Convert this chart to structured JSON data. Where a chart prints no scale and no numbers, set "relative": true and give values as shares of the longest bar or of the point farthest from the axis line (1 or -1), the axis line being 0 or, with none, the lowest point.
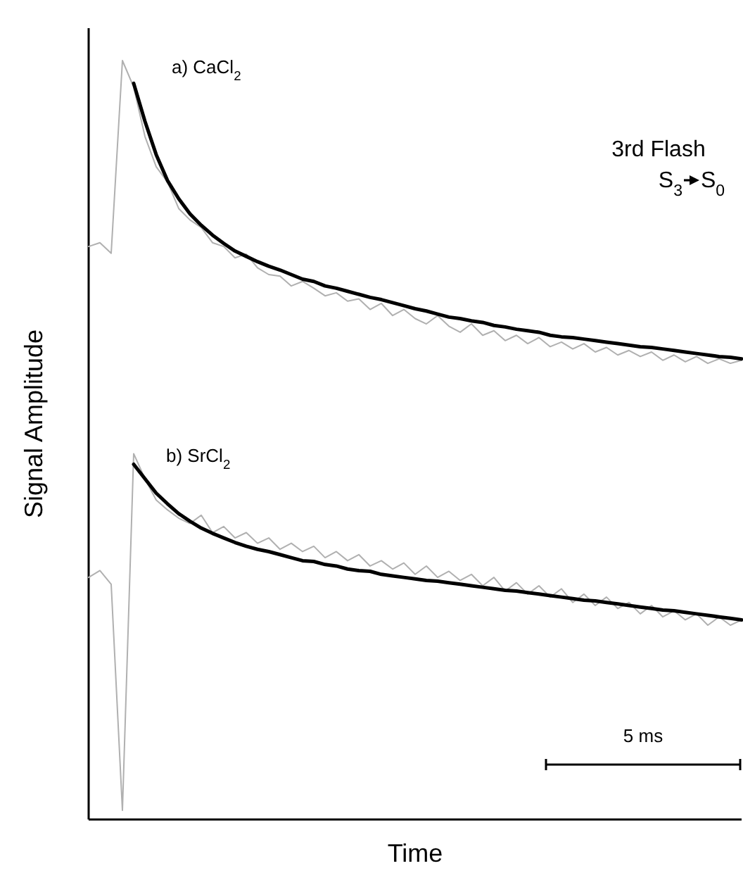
{
  "chart_data": {
    "type": "line",
    "relative": true,
    "xlabel": "Time",
    "ylabel": "Signal Amplitude",
    "categories": [
      null,
      null,
      null,
      null,
      null,
      null,
      null,
      null,
      null,
      null,
      null,
      null,
      null,
      null,
      null,
      null,
      null,
      null,
      null,
      null,
      null,
      null,
      null,
      null,
      null,
      null,
      null,
      null,
      null,
      null,
      null,
      null,
      null,
      null,
      null,
      null,
      null,
      null,
      null,
      null,
      null,
      null,
      null,
      null,
      null,
      null,
      null,
      null,
      null,
      null,
      null,
      null,
      null,
      null,
      null,
      null,
      null,
      null,
      null
    ],
    "series": [
      {
        "color": "#b0b0b0",
        "values": [
          0.755,
          0.76,
          0.746,
          1.0,
          0.965,
          0.9,
          0.86,
          0.84,
          0.805,
          0.79,
          0.78,
          0.76,
          0.755,
          0.74,
          0.745,
          0.727,
          0.718,
          0.716,
          0.703,
          0.709,
          0.7,
          0.69,
          0.694,
          0.683,
          0.686,
          0.672,
          0.68,
          0.664,
          0.672,
          0.66,
          0.653,
          0.664,
          0.65,
          0.642,
          0.653,
          0.638,
          0.644,
          0.631,
          0.638,
          0.627,
          0.635,
          0.623,
          0.629,
          0.62,
          0.627,
          0.616,
          0.622,
          0.612,
          0.618,
          0.61,
          0.616,
          0.605,
          0.612,
          0.603,
          0.61,
          0.601,
          0.607,
          0.601,
          0.605
        ]
      },
      {
        "color": "#000000",
        "values": [
          null,
          null,
          null,
          null,
          0.97,
          0.92,
          0.876,
          0.842,
          0.818,
          0.798,
          0.783,
          0.77,
          0.759,
          0.749,
          0.742,
          0.735,
          0.729,
          0.724,
          0.718,
          0.712,
          0.709,
          0.703,
          0.7,
          0.696,
          0.692,
          0.688,
          0.685,
          0.681,
          0.677,
          0.673,
          0.67,
          0.666,
          0.662,
          0.66,
          0.657,
          0.655,
          0.651,
          0.649,
          0.646,
          0.644,
          0.642,
          0.638,
          0.636,
          0.635,
          0.633,
          0.631,
          0.629,
          0.627,
          0.625,
          0.623,
          0.622,
          0.62,
          0.618,
          0.616,
          0.614,
          0.612,
          0.61,
          0.609,
          0.607
        ]
      },
      {
        "color": "#b0b0b0",
        "values": [
          0.319,
          0.328,
          0.31,
          0.012,
          0.482,
          0.449,
          0.421,
          0.408,
          0.397,
          0.39,
          0.401,
          0.378,
          0.386,
          0.371,
          0.378,
          0.364,
          0.371,
          0.356,
          0.364,
          0.353,
          0.36,
          0.345,
          0.353,
          0.341,
          0.349,
          0.334,
          0.341,
          0.33,
          0.338,
          0.323,
          0.334,
          0.319,
          0.327,
          0.315,
          0.323,
          0.308,
          0.319,
          0.301,
          0.312,
          0.297,
          0.308,
          0.293,
          0.304,
          0.286,
          0.297,
          0.282,
          0.293,
          0.278,
          0.286,
          0.271,
          0.282,
          0.267,
          0.275,
          0.263,
          0.271,
          0.256,
          0.267,
          0.256,
          0.263
        ]
      },
      {
        "color": "#000000",
        "values": [
          null,
          null,
          null,
          null,
          0.468,
          0.449,
          0.43,
          0.416,
          0.403,
          0.393,
          0.384,
          0.377,
          0.371,
          0.365,
          0.36,
          0.356,
          0.353,
          0.349,
          0.345,
          0.341,
          0.34,
          0.336,
          0.334,
          0.33,
          0.328,
          0.327,
          0.323,
          0.321,
          0.319,
          0.317,
          0.315,
          0.314,
          0.312,
          0.31,
          0.308,
          0.306,
          0.304,
          0.302,
          0.301,
          0.299,
          0.297,
          0.295,
          0.293,
          0.291,
          0.289,
          0.288,
          0.286,
          0.284,
          0.282,
          0.28,
          0.278,
          0.276,
          0.275,
          0.273,
          0.271,
          0.269,
          0.267,
          0.265,
          0.263
        ]
      }
    ],
    "annotations": [
      "a) CaCl$_{2}$",
      "b) SrCl$_{2}$",
      "3rd Flash",
      "S$_{3}$",
      "S$_{0}$",
      "5 ms"
    ]
  }
}
